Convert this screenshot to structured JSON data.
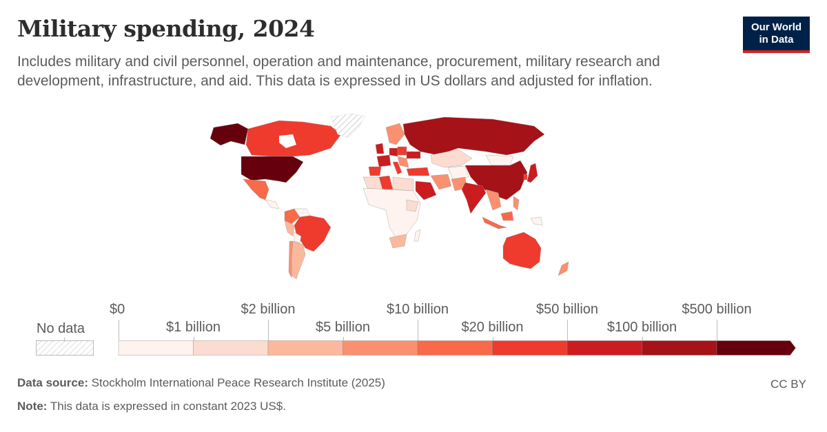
{
  "header": {
    "title": "Military spending, 2024",
    "subtitle": "Includes military and civil personnel, operation and maintenance, procurement, military research and development, infrastructure, and aid. This data is expressed in US dollars and adjusted for inflation.",
    "logo_line1": "Our World",
    "logo_line2": "in Data"
  },
  "legend": {
    "no_data_label": "No data",
    "no_data_color": "#ffffff",
    "bins": [
      {
        "from": "$0",
        "to": "$1 billion",
        "color": "#fef3ee"
      },
      {
        "from": "$1 billion",
        "to": "$2 billion",
        "color": "#fcdcd0"
      },
      {
        "from": "$2 billion",
        "to": "$5 billion",
        "color": "#fbb89c"
      },
      {
        "from": "$5 billion",
        "to": "$10 billion",
        "color": "#fb9070"
      },
      {
        "from": "$10 billion",
        "to": "$20 billion",
        "color": "#f86a4a"
      },
      {
        "from": "$20 billion",
        "to": "$50 billion",
        "color": "#ee3b2d"
      },
      {
        "from": "$50 billion",
        "to": "$100 billion",
        "color": "#cb1c20"
      },
      {
        "from": "$100 billion",
        "to": "$500 billion",
        "color": "#a51218"
      },
      {
        "from": "$500 billion",
        "to": "",
        "color": "#67000d"
      }
    ],
    "upper_ticks": [
      "$0",
      "$2 billion",
      "$10 billion",
      "$50 billion",
      "$500 billion"
    ],
    "lower_ticks": [
      "$1 billion",
      "$5 billion",
      "$20 billion",
      "$100 billion"
    ]
  },
  "footer": {
    "source_label": "Data source:",
    "source_text": "Stockholm International Peace Research Institute (2025)",
    "note_label": "Note:",
    "note_text": "This data is expressed in constant 2023 US$.",
    "license": "CC BY"
  },
  "chart_data": {
    "type": "choropleth-map",
    "title": "Military spending, 2024",
    "subtitle": "Includes military and civil personnel, operation and maintenance, procurement, military research and development, infrastructure, and aid. This data is expressed in US dollars and adjusted for inflation.",
    "unit": "constant 2023 US$",
    "scale_bins": [
      "$0",
      "$1 billion",
      "$2 billion",
      "$5 billion",
      "$10 billion",
      "$20 billion",
      "$50 billion",
      "$100 billion",
      "$500 billion"
    ],
    "regions": [
      {
        "name": "United States",
        "bin": ">$500 billion"
      },
      {
        "name": "Russia",
        "bin": "$100–500 billion"
      },
      {
        "name": "China",
        "bin": "$100–500 billion"
      },
      {
        "name": "India",
        "bin": "$50–100 billion"
      },
      {
        "name": "Saudi Arabia",
        "bin": "$50–100 billion"
      },
      {
        "name": "United Kingdom",
        "bin": "$50–100 billion"
      },
      {
        "name": "Germany",
        "bin": "$50–100 billion"
      },
      {
        "name": "France",
        "bin": "$50–100 billion"
      },
      {
        "name": "Ukraine",
        "bin": "$50–100 billion"
      },
      {
        "name": "Japan",
        "bin": "$50–100 billion"
      },
      {
        "name": "South Korea",
        "bin": "$20–50 billion"
      },
      {
        "name": "Canada",
        "bin": "$20–50 billion"
      },
      {
        "name": "Brazil",
        "bin": "$20–50 billion"
      },
      {
        "name": "Australia",
        "bin": "$20–50 billion"
      },
      {
        "name": "Italy",
        "bin": "$20–50 billion"
      },
      {
        "name": "Poland",
        "bin": "$20–50 billion"
      },
      {
        "name": "Turkey",
        "bin": "$20–50 billion"
      },
      {
        "name": "Algeria",
        "bin": "$20–50 billion"
      },
      {
        "name": "Spain",
        "bin": "$20–50 billion"
      },
      {
        "name": "Mexico",
        "bin": "$10–20 billion"
      },
      {
        "name": "Colombia",
        "bin": "$10–20 billion"
      },
      {
        "name": "Indonesia",
        "bin": "$10–20 billion"
      },
      {
        "name": "Argentina",
        "bin": "$2–5 billion"
      },
      {
        "name": "Chile",
        "bin": "$5–10 billion"
      },
      {
        "name": "Iran",
        "bin": "$5–10 billion"
      },
      {
        "name": "Pakistan",
        "bin": "$5–10 billion"
      },
      {
        "name": "South Africa",
        "bin": "$2–5 billion"
      },
      {
        "name": "Kazakhstan",
        "bin": "$1–2 billion"
      },
      {
        "name": "Mongolia",
        "bin": "$0–1 billion"
      },
      {
        "name": "Greenland",
        "bin": "No data"
      }
    ]
  }
}
